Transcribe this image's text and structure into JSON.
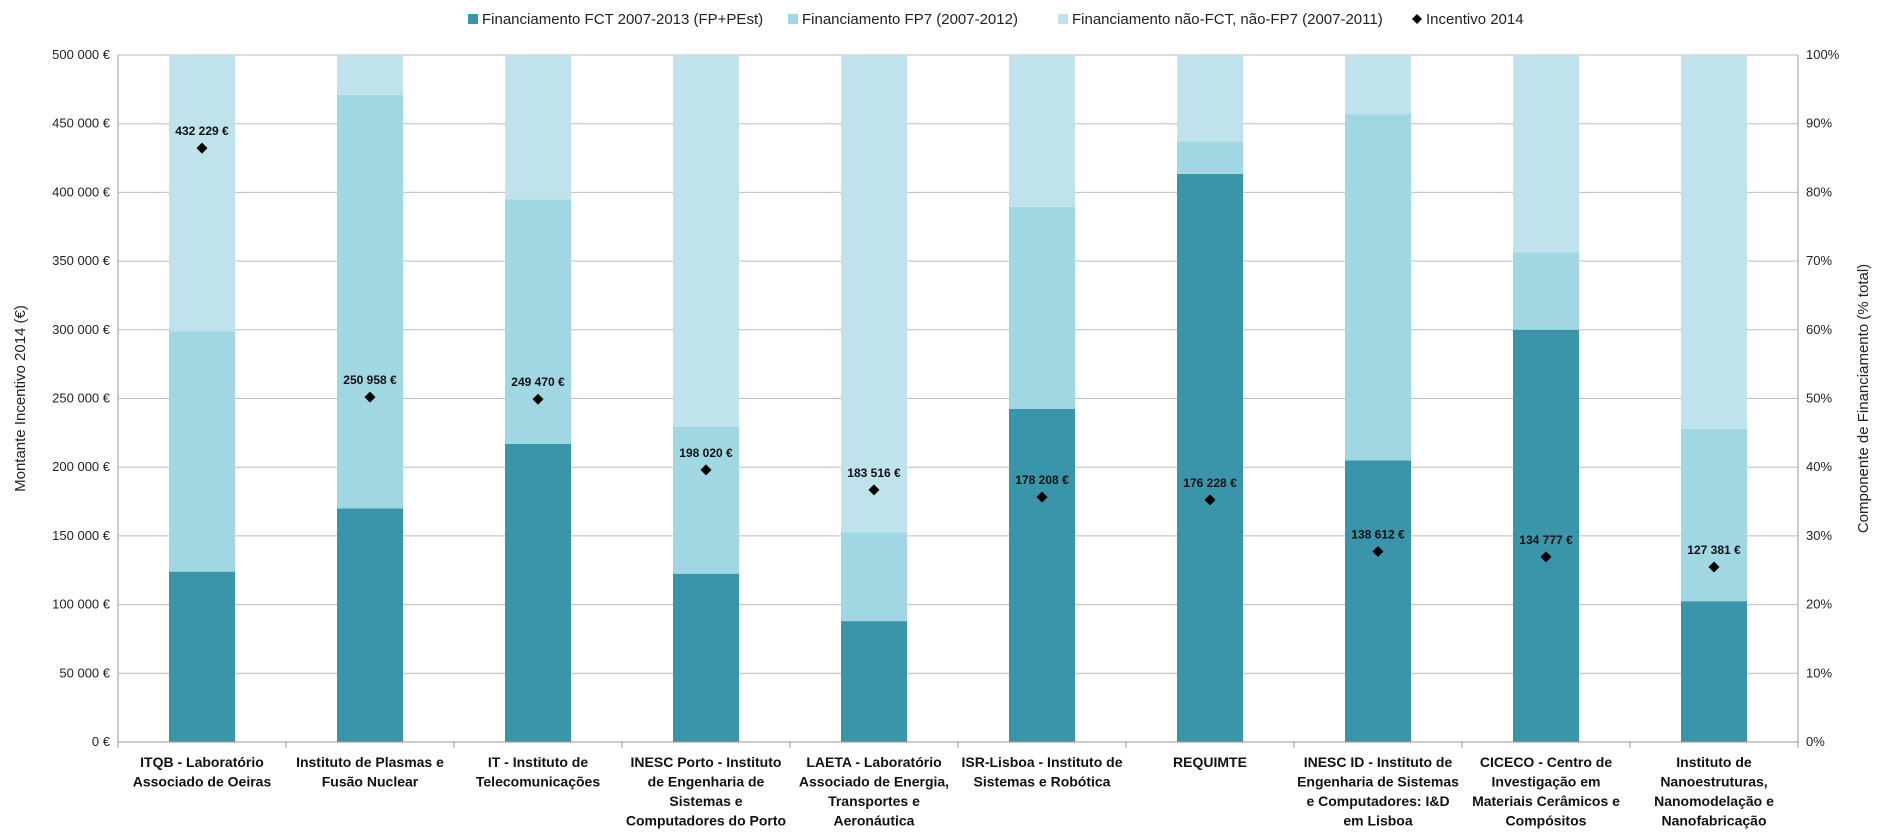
{
  "chart_data": {
    "type": "bar",
    "stacked": "percent",
    "legend_position": "top",
    "grid": true,
    "categories": [
      "ITQB - Laboratório Associado de Oeiras",
      "Instituto de Plasmas e Fusão Nuclear",
      "IT - Instituto de Telecomunicações",
      "INESC Porto - Instituto de Engenharia de Sistemas e Computadores do Porto",
      "LAETA - Laboratório Associado de Energia, Transportes e Aeronáutica",
      "ISR-Lisboa - Instituto de Sistemas e Robótica",
      "REQUIMTE",
      "INESC ID - Instituto de Engenharia de Sistemas e Computadores: I&D em Lisboa",
      "CICECO - Centro de Investigação em Materiais Cerâmicos e Compósitos",
      "Instituto de Nanoestruturas, Nanomodelação e Nanofabricação"
    ],
    "category_label_lines": [
      [
        "ITQB - Laboratório",
        "Associado de Oeiras"
      ],
      [
        "Instituto de Plasmas e",
        "Fusão Nuclear"
      ],
      [
        "IT - Instituto de",
        "Telecomunicações"
      ],
      [
        "INESC Porto - Instituto",
        "de Engenharia de",
        "Sistemas e",
        "Computadores do Porto"
      ],
      [
        "LAETA - Laboratório",
        "Associado de Energia,",
        "Transportes e",
        "Aeronáutica"
      ],
      [
        "ISR-Lisboa - Instituto de",
        "Sistemas e Robótica"
      ],
      [
        "REQUIMTE"
      ],
      [
        "INESC ID - Instituto de",
        "Engenharia de Sistemas",
        "e Computadores: I&D",
        "em Lisboa"
      ],
      [
        "CICECO - Centro de",
        "Investigação em",
        "Materiais Cerâmicos e",
        "Compósitos"
      ],
      [
        "Instituto de",
        "Nanoestruturas,",
        "Nanomodelação e",
        "Nanofabricação"
      ]
    ],
    "series": [
      {
        "name": "Financiamento FCT 2007-2013 (FP+PEst)",
        "axis": "right",
        "unit": "%",
        "color": "#3a95ab",
        "values": [
          24.8,
          34.0,
          43.4,
          24.5,
          17.6,
          48.5,
          82.7,
          41.0,
          60.0,
          20.5
        ]
      },
      {
        "name": "Financiamento FP7 (2007-2012)",
        "axis": "right",
        "unit": "%",
        "color": "#a1d7e3",
        "values": [
          35.0,
          60.2,
          35.6,
          21.4,
          12.9,
          29.4,
          4.7,
          50.4,
          11.3,
          25.1
        ]
      },
      {
        "name": "Financiamento não-FCT, não-FP7 (2007-2011)",
        "axis": "right",
        "unit": "%",
        "color": "#c0e2ea",
        "values": [
          40.2,
          5.8,
          21.0,
          54.1,
          69.5,
          22.1,
          12.6,
          8.6,
          28.7,
          54.4
        ]
      },
      {
        "name": "Incentivo 2014",
        "axis": "left",
        "type": "scatter",
        "marker": "diamond",
        "color": "#000000",
        "values": [
          432229,
          250958,
          249470,
          198020,
          183516,
          178208,
          176228,
          138612,
          134777,
          127381
        ],
        "labels": [
          "432 229 €",
          "250 958 €",
          "249 470 €",
          "198 020 €",
          "183 516 €",
          "178 208 €",
          "176 228 €",
          "138 612 €",
          "134 777 €",
          "127 381 €"
        ]
      }
    ],
    "y_left": {
      "label": "Montante Incentivo 2014 (€)",
      "lim": [
        0,
        500000
      ],
      "ticks": [
        0,
        50000,
        100000,
        150000,
        200000,
        250000,
        300000,
        350000,
        400000,
        450000,
        500000
      ],
      "tick_labels": [
        "0 €",
        "50 000 €",
        "100 000 €",
        "150 000 €",
        "200 000 €",
        "250 000 €",
        "300 000 €",
        "350 000 €",
        "400 000 €",
        "450 000 €",
        "500 000 €"
      ]
    },
    "y_right": {
      "label": "Componente de Financiamento (% total)",
      "lim": [
        0,
        100
      ],
      "ticks": [
        0,
        10,
        20,
        30,
        40,
        50,
        60,
        70,
        80,
        90,
        100
      ],
      "tick_labels": [
        "0%",
        "10%",
        "20%",
        "30%",
        "40%",
        "50%",
        "60%",
        "70%",
        "80%",
        "90%",
        "100%"
      ]
    },
    "colors": {
      "grid": "#bdbdbd",
      "axis": "#9a9a9a"
    }
  }
}
